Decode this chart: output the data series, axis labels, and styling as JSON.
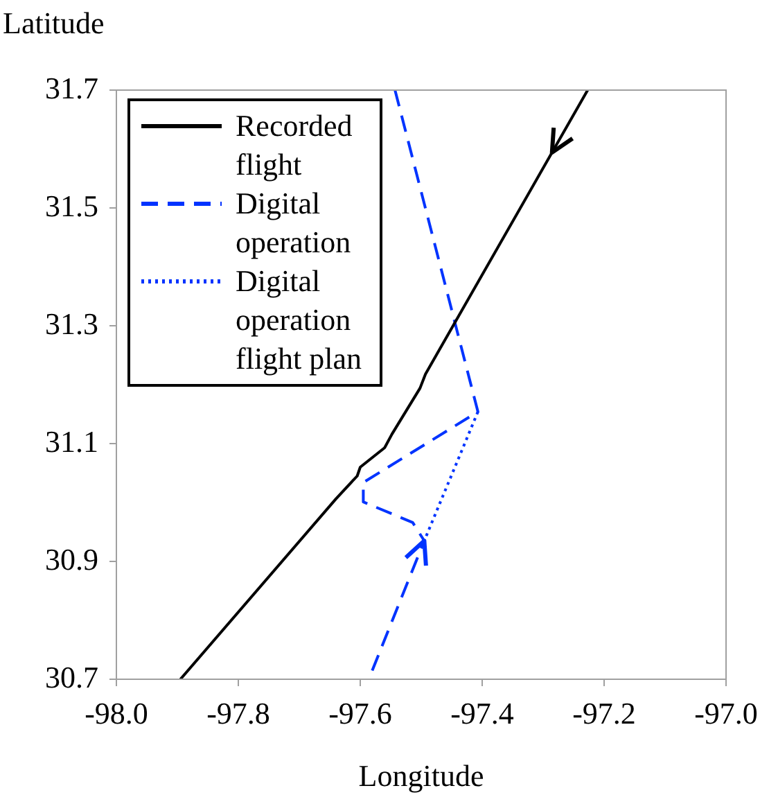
{
  "chart_data": {
    "type": "line",
    "xlabel": "Longitude",
    "ylabel": "Latitude",
    "xlim": [
      -98.0,
      -97.0
    ],
    "xticks": [
      {
        "value": -98.0,
        "label": "-98.0"
      },
      -97.8,
      -97.6,
      -97.4,
      -97.2,
      {
        "value": -97.0,
        "label": "-97.0"
      }
    ],
    "ylim": [
      30.7,
      31.7
    ],
    "yticks": [
      30.7,
      30.9,
      31.1,
      31.3,
      31.5,
      31.7
    ],
    "grid": false,
    "legend": "top left",
    "marker": "none",
    "series": [
      {
        "name": "Recorded flight",
        "color": "#000000",
        "line_style": "solid",
        "x": [
          -97.895,
          -97.64,
          -97.605,
          -97.6,
          -97.56,
          -97.548,
          -97.502,
          -97.493,
          -97.227
        ],
        "values": [
          30.7,
          31.006,
          31.045,
          31.06,
          31.093,
          31.116,
          31.194,
          31.218,
          31.7
        ]
      },
      {
        "name": "Digital operation",
        "color": "#0033ff",
        "line_style": "dashed",
        "x": [
          -97.543,
          -97.407,
          -97.595,
          -97.595,
          -97.514,
          -97.495,
          -97.586
        ],
        "values": [
          31.7,
          31.154,
          31.034,
          31.001,
          30.966,
          30.935,
          30.7
        ]
      },
      {
        "name": "Digital operation flight plan",
        "color": "#0033ff",
        "line_style": "dotted",
        "x": [
          -97.407,
          -97.495
        ],
        "values": [
          31.154,
          30.935
        ]
      }
    ]
  }
}
